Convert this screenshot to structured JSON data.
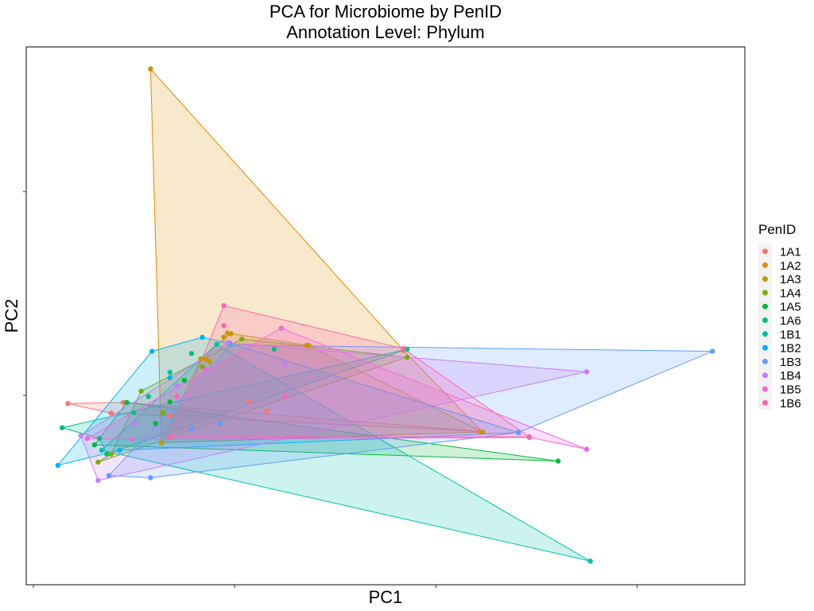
{
  "chart_data": {
    "type": "scatter",
    "title": "PCA for Microbiome by PenID",
    "subtitle": "Annotation Level: Phylum",
    "xlabel": "PC1",
    "ylabel": "PC2",
    "xlim": [
      0,
      1
    ],
    "ylim": [
      0,
      1
    ],
    "x_ticks": [
      0.01,
      0.29,
      0.57,
      0.85
    ],
    "y_ticks": [
      0.352,
      0.731
    ],
    "tick_labels_shown": false,
    "grid": false,
    "hull_polygons": true,
    "legend": {
      "title": "PenID",
      "position": "right"
    },
    "series": [
      {
        "name": "1A1",
        "color": "#F8766D",
        "hull": [
          [
            0.058,
            0.337
          ],
          [
            0.135,
            0.339
          ],
          [
            0.63,
            0.285
          ],
          [
            0.118,
            0.319
          ]
        ],
        "points": [
          [
            0.058,
            0.337
          ],
          [
            0.135,
            0.339
          ],
          [
            0.63,
            0.285
          ],
          [
            0.118,
            0.319
          ],
          [
            0.2,
            0.315
          ],
          [
            0.31,
            0.34
          ],
          [
            0.335,
            0.323
          ]
        ]
      },
      {
        "name": "1A2",
        "color": "#DE8C00",
        "hull": [
          [
            0.173,
            0.959
          ],
          [
            0.525,
            0.436
          ],
          [
            0.635,
            0.284
          ],
          [
            0.188,
            0.264
          ]
        ],
        "points": [
          [
            0.173,
            0.959
          ],
          [
            0.525,
            0.436
          ],
          [
            0.635,
            0.284
          ],
          [
            0.188,
            0.264
          ],
          [
            0.39,
            0.445
          ],
          [
            0.28,
            0.468
          ],
          [
            0.25,
            0.42
          ]
        ]
      },
      {
        "name": "1A3",
        "color": "#B79F00",
        "hull": [
          [
            0.285,
            0.467
          ],
          [
            0.393,
            0.445
          ],
          [
            0.635,
            0.284
          ],
          [
            0.188,
            0.264
          ],
          [
            0.243,
            0.42
          ]
        ],
        "points": [
          [
            0.285,
            0.467
          ],
          [
            0.393,
            0.445
          ],
          [
            0.635,
            0.284
          ],
          [
            0.188,
            0.264
          ],
          [
            0.243,
            0.42
          ],
          [
            0.275,
            0.46
          ],
          [
            0.255,
            0.415
          ]
        ]
      },
      {
        "name": "1A4",
        "color": "#7CAE00",
        "hull": [
          [
            0.3,
            0.457
          ],
          [
            0.53,
            0.423
          ],
          [
            0.1,
            0.228
          ],
          [
            0.118,
            0.243
          ],
          [
            0.16,
            0.36
          ]
        ],
        "points": [
          [
            0.3,
            0.457
          ],
          [
            0.53,
            0.423
          ],
          [
            0.1,
            0.228
          ],
          [
            0.118,
            0.243
          ],
          [
            0.16,
            0.36
          ],
          [
            0.245,
            0.405
          ],
          [
            0.19,
            0.32
          ]
        ]
      },
      {
        "name": "1A5",
        "color": "#00BA38",
        "hull": [
          [
            0.14,
            0.339
          ],
          [
            0.74,
            0.23
          ],
          [
            0.095,
            0.26
          ]
        ],
        "points": [
          [
            0.14,
            0.339
          ],
          [
            0.74,
            0.23
          ],
          [
            0.095,
            0.26
          ],
          [
            0.2,
            0.34
          ],
          [
            0.18,
            0.3
          ],
          [
            0.22,
            0.38
          ]
        ]
      },
      {
        "name": "1A6",
        "color": "#00BF7D",
        "hull": [
          [
            0.05,
            0.292
          ],
          [
            0.53,
            0.438
          ],
          [
            0.112,
            0.243
          ],
          [
            0.102,
            0.272
          ]
        ],
        "points": [
          [
            0.05,
            0.292
          ],
          [
            0.53,
            0.438
          ],
          [
            0.112,
            0.243
          ],
          [
            0.102,
            0.272
          ],
          [
            0.23,
            0.43
          ],
          [
            0.17,
            0.35
          ],
          [
            0.345,
            0.438
          ]
        ]
      },
      {
        "name": "1B1",
        "color": "#00C1A7",
        "hull": [
          [
            0.265,
            0.447
          ],
          [
            0.785,
            0.044
          ],
          [
            0.105,
            0.25
          ]
        ],
        "points": [
          [
            0.265,
            0.447
          ],
          [
            0.785,
            0.044
          ],
          [
            0.105,
            0.25
          ],
          [
            0.2,
            0.395
          ],
          [
            0.15,
            0.32
          ]
        ]
      },
      {
        "name": "1B2",
        "color": "#00B5EE",
        "hull": [
          [
            0.044,
            0.222
          ],
          [
            0.175,
            0.434
          ],
          [
            0.245,
            0.46
          ],
          [
            0.283,
            0.449
          ],
          [
            0.685,
            0.283
          ],
          [
            0.13,
            0.25
          ]
        ],
        "points": [
          [
            0.044,
            0.222
          ],
          [
            0.175,
            0.434
          ],
          [
            0.245,
            0.46
          ],
          [
            0.283,
            0.449
          ],
          [
            0.685,
            0.283
          ],
          [
            0.13,
            0.25
          ],
          [
            0.2,
            0.385
          ]
        ]
      },
      {
        "name": "1B3",
        "color": "#619CFF",
        "hull": [
          [
            0.285,
            0.446
          ],
          [
            0.955,
            0.434
          ],
          [
            0.685,
            0.283
          ],
          [
            0.173,
            0.199
          ],
          [
            0.115,
            0.203
          ]
        ],
        "points": [
          [
            0.285,
            0.446
          ],
          [
            0.955,
            0.434
          ],
          [
            0.685,
            0.283
          ],
          [
            0.173,
            0.199
          ],
          [
            0.115,
            0.203
          ],
          [
            0.23,
            0.29
          ],
          [
            0.27,
            0.3
          ]
        ]
      },
      {
        "name": "1B4",
        "color": "#C77CFF",
        "hull": [
          [
            0.076,
            0.277
          ],
          [
            0.28,
            0.45
          ],
          [
            0.78,
            0.396
          ],
          [
            0.1,
            0.194
          ]
        ],
        "points": [
          [
            0.076,
            0.277
          ],
          [
            0.28,
            0.45
          ],
          [
            0.78,
            0.396
          ],
          [
            0.1,
            0.194
          ],
          [
            0.21,
            0.37
          ],
          [
            0.36,
            0.41
          ],
          [
            0.15,
            0.3
          ]
        ]
      },
      {
        "name": "1B5",
        "color": "#F564E3",
        "hull": [
          [
            0.085,
            0.272
          ],
          [
            0.355,
            0.477
          ],
          [
            0.78,
            0.252
          ],
          [
            0.7,
            0.274
          ],
          [
            0.147,
            0.27
          ]
        ],
        "points": [
          [
            0.085,
            0.272
          ],
          [
            0.355,
            0.477
          ],
          [
            0.78,
            0.252
          ],
          [
            0.7,
            0.274
          ],
          [
            0.147,
            0.27
          ],
          [
            0.25,
            0.4
          ]
        ]
      },
      {
        "name": "1B6",
        "color": "#FF64B0",
        "hull": [
          [
            0.275,
            0.519
          ],
          [
            0.525,
            0.439
          ],
          [
            0.7,
            0.275
          ],
          [
            0.2,
            0.275
          ]
        ],
        "points": [
          [
            0.275,
            0.519
          ],
          [
            0.525,
            0.439
          ],
          [
            0.7,
            0.275
          ],
          [
            0.2,
            0.275
          ],
          [
            0.275,
            0.482
          ],
          [
            0.36,
            0.35
          ],
          [
            0.21,
            0.35
          ]
        ]
      }
    ]
  }
}
